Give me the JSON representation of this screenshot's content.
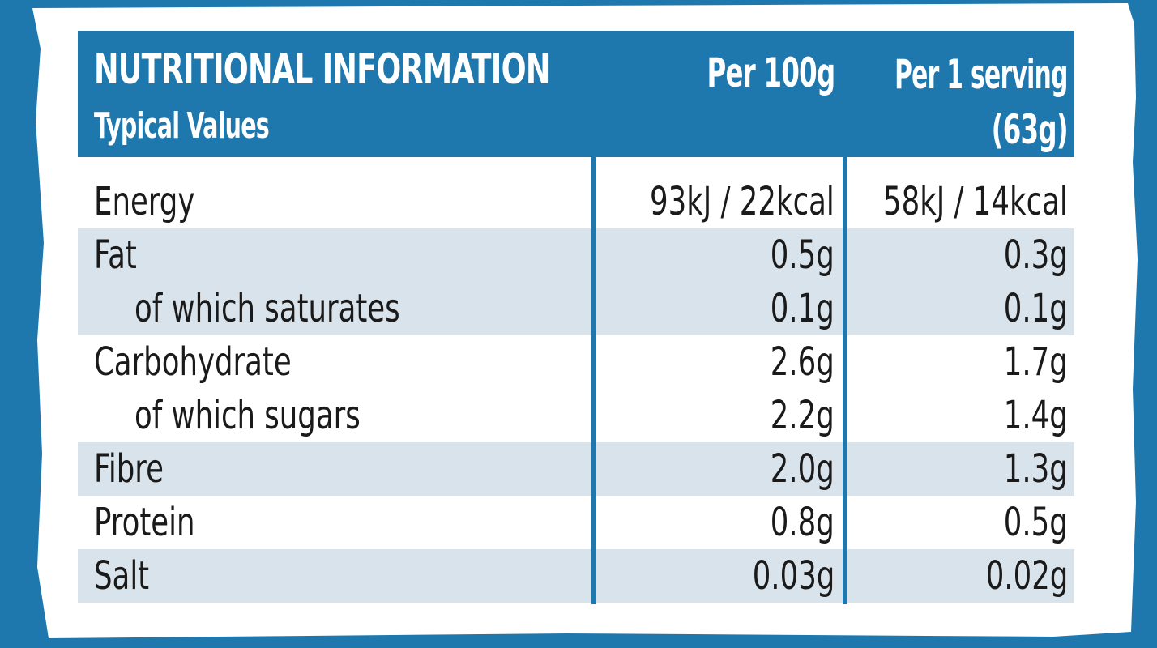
{
  "header": {
    "title": "NUTRITIONAL INFORMATION",
    "subtitle": "Typical Values",
    "col_per100": "Per 100g",
    "col_serving_line1": "Per 1 serving",
    "col_serving_line2": "(63g)"
  },
  "rows": [
    {
      "name": "Energy",
      "per100": "93kJ / 22kcal",
      "serving": "58kJ / 14kcal",
      "shaded": false,
      "sub": false
    },
    {
      "name": "Fat",
      "per100": "0.5g",
      "serving": "0.3g",
      "shaded": true,
      "sub": false
    },
    {
      "name": "of which saturates",
      "per100": "0.1g",
      "serving": "0.1g",
      "shaded": true,
      "sub": true
    },
    {
      "name": "Carbohydrate",
      "per100": "2.6g",
      "serving": "1.7g",
      "shaded": false,
      "sub": false
    },
    {
      "name": "of which sugars",
      "per100": "2.2g",
      "serving": "1.4g",
      "shaded": false,
      "sub": true
    },
    {
      "name": "Fibre",
      "per100": "2.0g",
      "serving": "1.3g",
      "shaded": true,
      "sub": false
    },
    {
      "name": "Protein",
      "per100": "0.8g",
      "serving": "0.5g",
      "shaded": false,
      "sub": false
    },
    {
      "name": "Salt",
      "per100": "0.03g",
      "serving": "0.02g",
      "shaded": true,
      "sub": false
    }
  ],
  "colors": {
    "brand_blue": "#1f78ad",
    "row_shade": "#d9e3ec",
    "card_white": "#ffffff",
    "text": "#1a1a1a"
  }
}
